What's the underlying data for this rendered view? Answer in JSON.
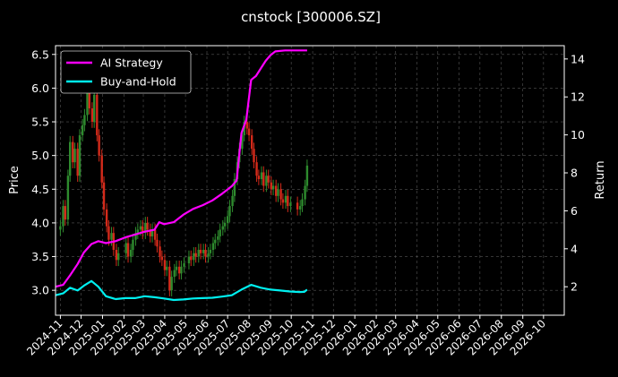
{
  "chart_data": {
    "type": "line",
    "title": "cnstock [300006.SZ]",
    "ylabel": "Price",
    "y2label": "Return",
    "xlim": [
      "2024-10-25",
      "2026-10-31"
    ],
    "ylim": [
      2.63,
      6.63
    ],
    "y2lim": [
      0.5,
      14.7
    ],
    "grid": true,
    "background": "#000000",
    "legend": {
      "position": "top-left"
    },
    "x_ticks": [
      "2024-11",
      "2024-12",
      "2025-01",
      "2025-02",
      "2025-03",
      "2025-04",
      "2025-05",
      "2025-06",
      "2025-07",
      "2025-08",
      "2025-09",
      "2025-10",
      "2025-11",
      "2025-12",
      "2026-01",
      "2026-02",
      "2026-03",
      "2026-04",
      "2026-05",
      "2026-06",
      "2026-07",
      "2026-08",
      "2026-09",
      "2026-10"
    ],
    "y_ticks": [
      "3.0",
      "3.5",
      "4.0",
      "4.5",
      "5.0",
      "5.5",
      "6.0",
      "6.5"
    ],
    "y2_ticks": [
      "2",
      "4",
      "6",
      "8",
      "10",
      "12",
      "14"
    ],
    "candlestick": {
      "name": "Price",
      "up_color": "#2e8b2e",
      "down_color": "#d42a1a",
      "close": [
        [
          "2024-11-01",
          3.95
        ],
        [
          "2024-11-05",
          4.25
        ],
        [
          "2024-11-08",
          4.05
        ],
        [
          "2024-11-12",
          4.7
        ],
        [
          "2024-11-15",
          5.2
        ],
        [
          "2024-11-19",
          4.9
        ],
        [
          "2024-11-22",
          5.1
        ],
        [
          "2024-11-26",
          4.7
        ],
        [
          "2024-11-29",
          5.3
        ],
        [
          "2024-12-03",
          5.45
        ],
        [
          "2024-12-06",
          5.6
        ],
        [
          "2024-12-10",
          5.95
        ],
        [
          "2024-12-13",
          5.7
        ],
        [
          "2024-12-17",
          5.5
        ],
        [
          "2024-12-20",
          5.9
        ],
        [
          "2024-12-24",
          5.3
        ],
        [
          "2024-12-27",
          5.0
        ],
        [
          "2024-12-31",
          4.6
        ],
        [
          "2025-01-03",
          4.2
        ],
        [
          "2025-01-07",
          3.95
        ],
        [
          "2025-01-10",
          3.75
        ],
        [
          "2025-01-14",
          3.85
        ],
        [
          "2025-01-17",
          3.6
        ],
        [
          "2025-01-21",
          3.45
        ],
        [
          "2025-01-24",
          3.55
        ],
        [
          "2025-02-04",
          3.7
        ],
        [
          "2025-02-07",
          3.5
        ],
        [
          "2025-02-11",
          3.6
        ],
        [
          "2025-02-14",
          3.75
        ],
        [
          "2025-02-18",
          3.85
        ],
        [
          "2025-02-21",
          3.9
        ],
        [
          "2025-02-25",
          3.95
        ],
        [
          "2025-02-28",
          3.85
        ],
        [
          "2025-03-04",
          4.0
        ],
        [
          "2025-03-07",
          3.9
        ],
        [
          "2025-03-11",
          3.8
        ],
        [
          "2025-03-14",
          3.9
        ],
        [
          "2025-03-18",
          3.75
        ],
        [
          "2025-03-21",
          3.65
        ],
        [
          "2025-03-25",
          3.5
        ],
        [
          "2025-03-28",
          3.45
        ],
        [
          "2025-04-01",
          3.3
        ],
        [
          "2025-04-04",
          3.35
        ],
        [
          "2025-04-08",
          3.0
        ],
        [
          "2025-04-11",
          3.2
        ],
        [
          "2025-04-15",
          3.3
        ],
        [
          "2025-04-18",
          3.35
        ],
        [
          "2025-04-22",
          3.25
        ],
        [
          "2025-04-25",
          3.35
        ],
        [
          "2025-04-29",
          3.4
        ],
        [
          "2025-05-06",
          3.5
        ],
        [
          "2025-05-09",
          3.45
        ],
        [
          "2025-05-13",
          3.55
        ],
        [
          "2025-05-16",
          3.5
        ],
        [
          "2025-05-20",
          3.6
        ],
        [
          "2025-05-23",
          3.55
        ],
        [
          "2025-05-27",
          3.6
        ],
        [
          "2025-05-30",
          3.5
        ],
        [
          "2025-06-03",
          3.55
        ],
        [
          "2025-06-06",
          3.6
        ],
        [
          "2025-06-10",
          3.7
        ],
        [
          "2025-06-13",
          3.75
        ],
        [
          "2025-06-17",
          3.8
        ],
        [
          "2025-06-20",
          3.9
        ],
        [
          "2025-06-24",
          3.95
        ],
        [
          "2025-06-27",
          4.0
        ],
        [
          "2025-07-01",
          4.1
        ],
        [
          "2025-07-04",
          4.25
        ],
        [
          "2025-07-08",
          4.4
        ],
        [
          "2025-07-11",
          4.65
        ],
        [
          "2025-07-15",
          4.9
        ],
        [
          "2025-07-18",
          5.1
        ],
        [
          "2025-07-22",
          5.3
        ],
        [
          "2025-07-25",
          5.5
        ],
        [
          "2025-07-29",
          5.4
        ],
        [
          "2025-08-01",
          5.3
        ],
        [
          "2025-08-05",
          5.1
        ],
        [
          "2025-08-08",
          4.9
        ],
        [
          "2025-08-12",
          4.7
        ],
        [
          "2025-08-15",
          4.65
        ],
        [
          "2025-08-19",
          4.75
        ],
        [
          "2025-08-22",
          4.55
        ],
        [
          "2025-08-26",
          4.7
        ],
        [
          "2025-08-29",
          4.6
        ],
        [
          "2025-09-02",
          4.5
        ],
        [
          "2025-09-05",
          4.55
        ],
        [
          "2025-09-09",
          4.4
        ],
        [
          "2025-09-12",
          4.5
        ],
        [
          "2025-09-16",
          4.35
        ],
        [
          "2025-09-19",
          4.3
        ],
        [
          "2025-09-23",
          4.4
        ],
        [
          "2025-09-26",
          4.25
        ],
        [
          "2025-09-30",
          4.3
        ],
        [
          "2025-10-10",
          4.2
        ],
        [
          "2025-10-14",
          4.25
        ],
        [
          "2025-10-17",
          4.35
        ],
        [
          "2025-10-21",
          4.55
        ],
        [
          "2025-10-24",
          4.85
        ]
      ]
    },
    "series": [
      {
        "name": "AI Strategy",
        "axis": "right",
        "color": "#ff00ff",
        "points": [
          [
            "2024-10-25",
            2.0
          ],
          [
            "2024-11-05",
            2.1
          ],
          [
            "2024-11-15",
            2.6
          ],
          [
            "2024-11-26",
            3.2
          ],
          [
            "2024-12-05",
            3.8
          ],
          [
            "2024-12-16",
            4.25
          ],
          [
            "2024-12-26",
            4.4
          ],
          [
            "2025-01-06",
            4.3
          ],
          [
            "2025-01-20",
            4.4
          ],
          [
            "2025-02-03",
            4.6
          ],
          [
            "2025-02-17",
            4.75
          ],
          [
            "2025-03-03",
            4.9
          ],
          [
            "2025-03-17",
            5.0
          ],
          [
            "2025-03-24",
            5.4
          ],
          [
            "2025-03-31",
            5.3
          ],
          [
            "2025-04-14",
            5.4
          ],
          [
            "2025-04-28",
            5.8
          ],
          [
            "2025-05-12",
            6.1
          ],
          [
            "2025-05-26",
            6.3
          ],
          [
            "2025-06-09",
            6.55
          ],
          [
            "2025-06-23",
            6.9
          ],
          [
            "2025-07-07",
            7.3
          ],
          [
            "2025-07-14",
            7.6
          ],
          [
            "2025-07-21",
            10.1
          ],
          [
            "2025-07-28",
            10.8
          ],
          [
            "2025-08-04",
            12.9
          ],
          [
            "2025-08-11",
            13.1
          ],
          [
            "2025-08-18",
            13.5
          ],
          [
            "2025-08-25",
            13.9
          ],
          [
            "2025-09-01",
            14.2
          ],
          [
            "2025-09-08",
            14.4
          ],
          [
            "2025-09-22",
            14.45
          ],
          [
            "2025-10-06",
            14.45
          ],
          [
            "2025-10-24",
            14.45
          ]
        ]
      },
      {
        "name": "Buy-and-Hold",
        "axis": "right",
        "color": "#00f0f0",
        "points": [
          [
            "2024-10-25",
            1.55
          ],
          [
            "2024-11-05",
            1.65
          ],
          [
            "2024-11-15",
            1.95
          ],
          [
            "2024-11-26",
            1.8
          ],
          [
            "2024-12-05",
            2.05
          ],
          [
            "2024-12-16",
            2.3
          ],
          [
            "2024-12-26",
            2.0
          ],
          [
            "2025-01-06",
            1.5
          ],
          [
            "2025-01-20",
            1.35
          ],
          [
            "2025-02-03",
            1.4
          ],
          [
            "2025-02-17",
            1.4
          ],
          [
            "2025-03-03",
            1.5
          ],
          [
            "2025-03-17",
            1.45
          ],
          [
            "2025-03-31",
            1.38
          ],
          [
            "2025-04-14",
            1.3
          ],
          [
            "2025-04-28",
            1.33
          ],
          [
            "2025-05-12",
            1.38
          ],
          [
            "2025-05-26",
            1.4
          ],
          [
            "2025-06-09",
            1.42
          ],
          [
            "2025-06-23",
            1.48
          ],
          [
            "2025-07-07",
            1.55
          ],
          [
            "2025-07-21",
            1.85
          ],
          [
            "2025-08-04",
            2.1
          ],
          [
            "2025-08-18",
            1.95
          ],
          [
            "2025-09-01",
            1.85
          ],
          [
            "2025-09-15",
            1.8
          ],
          [
            "2025-09-29",
            1.75
          ],
          [
            "2025-10-13",
            1.72
          ],
          [
            "2025-10-20",
            1.73
          ],
          [
            "2025-10-24",
            1.85
          ]
        ]
      }
    ]
  }
}
